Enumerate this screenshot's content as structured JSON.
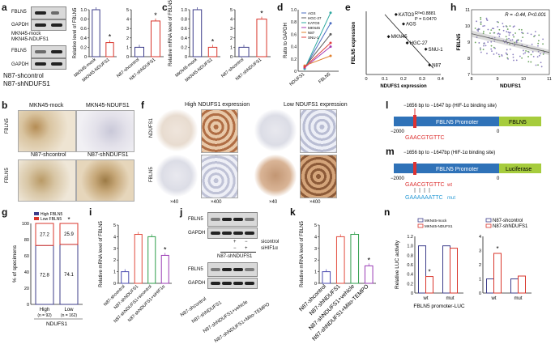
{
  "panels": {
    "a": "a",
    "b": "b",
    "c": "c",
    "d": "d",
    "e": "e",
    "f": "f",
    "g": "g",
    "h": "h",
    "i": "i",
    "j": "j",
    "k": "k",
    "l": "l",
    "m": "m",
    "n": "n"
  },
  "a": {
    "blot_top": [
      "FBLN5",
      "GAPDH"
    ],
    "blot_top_lanes": [
      "MKN45-mock",
      "MKN45-NDUFS1"
    ],
    "blot_bottom": [
      "FBLN5",
      "GAPDH"
    ],
    "blot_bottom_lanes": [
      "N87-shcontrol",
      "N87-shNDUFS1"
    ],
    "ylabel": "Relative level of FBLN5",
    "star": "*"
  },
  "b": {
    "left_top": "MKN45-mock",
    "right_top": "MKN45-NDUFS1",
    "left_bottom": "N87-shcontrol",
    "right_bottom": "N87-shNDUFS1",
    "row1": "FBLN5",
    "row2": "FBLN5"
  },
  "c": {
    "ylabel": "Relative mRNA level of FBLN5",
    "star": "*"
  },
  "d": {
    "ylabel": "Ratio to GAPDH",
    "xcats": [
      "NDUFS1",
      "FBLN5"
    ],
    "legend": [
      "AGS",
      "HGC-27",
      "KATO3",
      "MKN45",
      "N87",
      "SNU-1"
    ]
  },
  "e": {
    "ylabel": "FBLN5 expression",
    "xlabel": "NDUFS1 expression",
    "r2": "R²=0.8881",
    "p": "P = 0.0470",
    "points": [
      "KATO3",
      "AGS",
      "MKN45",
      "HGC-27",
      "SNU-1",
      "N87"
    ]
  },
  "f": {
    "title_left": "High NDUFS1 expression",
    "title_right": "Low NDUFS1 expression",
    "row1": "NDUFS1",
    "row2": "FBLN5",
    "mag": [
      "×40",
      "×400",
      "×40",
      "×400"
    ]
  },
  "g": {
    "ylabel": "% of specimens",
    "legend": [
      "High FBLN5",
      "Low FBLN5"
    ],
    "categories": [
      "High\n(n = 92)",
      "Low\n(n = 162)"
    ],
    "cat_labels": [
      "High",
      "Low"
    ],
    "cat_n": [
      "(n = 92)",
      "(n = 162)"
    ],
    "xlabel": "NDUFS1",
    "values": [
      "27.2",
      "72.8",
      "25.9",
      "74.1"
    ],
    "star": "*"
  },
  "h": {
    "ylabel": "FBLN5",
    "xlabel": "NDUFS1",
    "stat": "R = -0.44, P<0.001"
  },
  "i": {
    "ylabel": "Relative mRNA level of FBLN5",
    "cats": [
      "N87-shcontrol",
      "N87-shNDUFS1",
      "N87-shNDUFS1+sicontrol",
      "N87-shNDUFS1+siHIF1α"
    ],
    "star": "*"
  },
  "j": {
    "blot_top": [
      "FBLN5",
      "GAPDH"
    ],
    "blot_bottom": [
      "FBLN5",
      "GAPDH"
    ],
    "sicontrol": "sicontrol",
    "sihif": "siHIF1α",
    "group": "N87-shNDUFS1",
    "pm": [
      "+",
      "−",
      "−",
      "+"
    ],
    "lanes": [
      "N87-shcontrol",
      "N87-shNDUFS1",
      "N87-shNDUFS1+vehicle",
      "N87-shNDUFS1+Mito-TEMPO"
    ]
  },
  "k": {
    "ylabel": "Relative mRNA level of FBLN5",
    "cats": [
      "N87-shcontrol",
      "N87-shNDUFS1",
      "N87-shNDUFS1+vehicle",
      "N87-shNDUFS1+Mito-TEMPO"
    ],
    "star": "*"
  },
  "l": {
    "site": "−1656 bp to −1647 bp (HIF-1α binding site)",
    "start": "−2000",
    "zero": "0",
    "promoter": "FBLN5 Promoter",
    "gene": "FBLN5",
    "seq": "GAACGTGTTC"
  },
  "m": {
    "site": "−1656 bp to −1647bp (HIF-1α binding site)",
    "start": "−2000",
    "zero": "0",
    "promoter": "FBLN5 Promoter",
    "gene": "Luciferase",
    "seq_wt": "GAACGTGTTC",
    "wt": "wt",
    "seq_mut": "GAAAAAATTC",
    "mut": "mut"
  },
  "n": {
    "ylabel": "Relative LUC activity",
    "left_legend": [
      "MKN45-mock",
      "MKN45-NDUFS1"
    ],
    "right_legend": [
      "N87-shcontrol",
      "N87-shNDUFS1"
    ],
    "cats": [
      "wt",
      "mut"
    ],
    "xlabel": "FBLN5 promoter-LUC",
    "star": "*"
  },
  "chart_data": [
    {
      "id": "a-left",
      "type": "bar",
      "categories": [
        "MKN45-mock",
        "MKN45-NDUFS1"
      ],
      "values": [
        1.0,
        0.3
      ],
      "ylim": [
        0,
        1.0
      ],
      "yticks": [
        "0",
        "0.2",
        "0.4",
        "0.6",
        "0.8",
        "1.0"
      ]
    },
    {
      "id": "a-right",
      "type": "bar",
      "categories": [
        "N87-shcontrol",
        "N87-shNDUFS1"
      ],
      "values": [
        1.0,
        3.8
      ],
      "ylim": [
        0,
        5
      ],
      "yticks": [
        "0",
        "1",
        "2",
        "3",
        "4",
        "5"
      ]
    },
    {
      "id": "c-left",
      "type": "bar",
      "categories": [
        "MKN45-mock",
        "MKN45-NDUFS1"
      ],
      "values": [
        1.0,
        0.2
      ],
      "ylim": [
        0,
        1.0
      ],
      "yticks": [
        "0",
        "0.2",
        "0.4",
        "0.6",
        "0.8",
        "1.0"
      ]
    },
    {
      "id": "c-right",
      "type": "bar",
      "categories": [
        "N87-shcontrol",
        "N87-shNDUFS1"
      ],
      "values": [
        1.0,
        4.0
      ],
      "ylim": [
        0,
        5
      ],
      "yticks": [
        "0",
        "1",
        "2",
        "3",
        "4",
        "5"
      ]
    },
    {
      "id": "d",
      "type": "line",
      "categories": [
        "NDUFS1",
        "FBLN5"
      ],
      "ylim": [
        0,
        1.0
      ],
      "yticks": [
        "0",
        "0.2",
        "0.4",
        "0.6",
        "0.8",
        "1.0"
      ],
      "series": [
        {
          "name": "AGS",
          "values": [
            0.05,
            0.78
          ]
        },
        {
          "name": "HGC-27",
          "values": [
            0.07,
            0.6
          ]
        },
        {
          "name": "KATO3",
          "values": [
            0.04,
            0.95
          ]
        },
        {
          "name": "MKN45",
          "values": [
            0.06,
            0.4
          ]
        },
        {
          "name": "N87",
          "values": [
            0.09,
            0.25
          ]
        },
        {
          "name": "SNU-1",
          "values": [
            0.07,
            0.46
          ]
        }
      ]
    },
    {
      "id": "e",
      "type": "scatter",
      "xlim": [
        0,
        0.4
      ],
      "ylim": [
        0,
        1.0
      ],
      "xticks": [
        "0",
        "0.1",
        "0.2",
        "0.3",
        "0.4"
      ],
      "points": [
        {
          "name": "KATO3",
          "x": 0.16,
          "y": 0.95
        },
        {
          "name": "AGS",
          "x": 0.2,
          "y": 0.8
        },
        {
          "name": "MKN45",
          "x": 0.12,
          "y": 0.6
        },
        {
          "name": "HGC-27",
          "x": 0.22,
          "y": 0.5
        },
        {
          "name": "SNU-1",
          "x": 0.32,
          "y": 0.4
        },
        {
          "name": "N87",
          "x": 0.34,
          "y": 0.15
        }
      ]
    },
    {
      "id": "g",
      "type": "bar",
      "categories": [
        "High",
        "Low"
      ],
      "series": [
        {
          "name": "High FBLN5",
          "values": [
            27.2,
            25.9
          ]
        },
        {
          "name": "Low FBLN5",
          "values": [
            72.8,
            74.1
          ]
        }
      ],
      "ylim": [
        0,
        100
      ],
      "yticks": [
        "0",
        "20",
        "40",
        "60",
        "80",
        "100"
      ]
    },
    {
      "id": "h",
      "type": "scatter",
      "xlim": [
        8,
        11
      ],
      "ylim": [
        7,
        11
      ],
      "xticks": [
        "8",
        "9",
        "10",
        "11"
      ],
      "yticks": [
        "7",
        "8",
        "9",
        "10",
        "11"
      ]
    },
    {
      "id": "i",
      "type": "bar",
      "categories": [
        "N87-shcontrol",
        "N87-shNDUFS1",
        "N87-shNDUFS1+sicontrol",
        "N87-shNDUFS1+siHIF1α"
      ],
      "values": [
        1.0,
        4.2,
        4.0,
        2.4
      ],
      "ylim": [
        0,
        5
      ],
      "yticks": [
        "0",
        "1",
        "2",
        "3",
        "4",
        "5"
      ]
    },
    {
      "id": "k",
      "type": "bar",
      "categories": [
        "N87-shcontrol",
        "N87-shNDUFS1",
        "N87-shNDUFS1+vehicle",
        "N87-shNDUFS1+Mito-TEMPO"
      ],
      "values": [
        1.0,
        4.0,
        4.2,
        1.5
      ],
      "ylim": [
        0,
        5
      ],
      "yticks": [
        "0",
        "1",
        "2",
        "3",
        "4",
        "5"
      ]
    },
    {
      "id": "n-left",
      "type": "bar",
      "categories": [
        "wt",
        "mut"
      ],
      "series": [
        {
          "name": "MKN45-mock",
          "values": [
            1.0,
            1.0
          ]
        },
        {
          "name": "MKN45-NDUFS1",
          "values": [
            0.35,
            0.95
          ]
        }
      ],
      "ylim": [
        0,
        1.2
      ],
      "yticks": [
        "0",
        "0.2",
        "0.4",
        "0.6",
        "0.8",
        "1.0",
        "1.2"
      ]
    },
    {
      "id": "n-right",
      "type": "bar",
      "categories": [
        "wt",
        "mut"
      ],
      "series": [
        {
          "name": "N87-shcontrol",
          "values": [
            1.0,
            1.0
          ]
        },
        {
          "name": "N87-shNDUFS1",
          "values": [
            2.8,
            1.2
          ]
        }
      ],
      "ylim": [
        0,
        4
      ],
      "yticks": [
        "0",
        "1",
        "2",
        "3",
        "4"
      ]
    }
  ]
}
